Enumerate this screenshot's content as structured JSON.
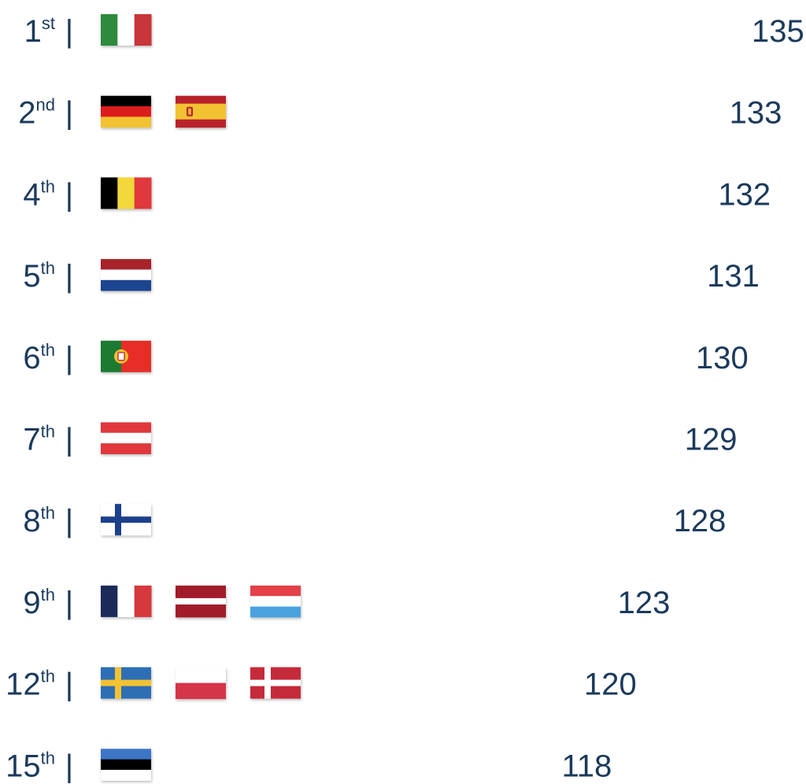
{
  "colors": {
    "text": "#1b3a5c",
    "bar_start": "#1b3a5c",
    "bar_end": "#e8394a"
  },
  "chart_data": {
    "type": "bar",
    "orientation": "horizontal",
    "rows": [
      {
        "rank": "1",
        "suffix": "st",
        "flags": [
          "italy-flag"
        ],
        "value": 135
      },
      {
        "rank": "2",
        "suffix": "nd",
        "flags": [
          "germany-flag",
          "spain-flag"
        ],
        "value": 133
      },
      {
        "rank": "4",
        "suffix": "th",
        "flags": [
          "belgium-flag"
        ],
        "value": 132
      },
      {
        "rank": "5",
        "suffix": "th",
        "flags": [
          "netherlands-flag"
        ],
        "value": 131
      },
      {
        "rank": "6",
        "suffix": "th",
        "flags": [
          "portugal-flag"
        ],
        "value": 130
      },
      {
        "rank": "7",
        "suffix": "th",
        "flags": [
          "austria-flag"
        ],
        "value": 129
      },
      {
        "rank": "8",
        "suffix": "th",
        "flags": [
          "finland-flag"
        ],
        "value": 128
      },
      {
        "rank": "9",
        "suffix": "th",
        "flags": [
          "france-flag",
          "latvia-flag",
          "luxembourg-flag"
        ],
        "value": 123
      },
      {
        "rank": "12",
        "suffix": "th",
        "flags": [
          "sweden-flag",
          "poland-flag",
          "denmark-flag"
        ],
        "value": 120
      },
      {
        "rank": "15",
        "suffix": "th",
        "flags": [
          "estonia-flag"
        ],
        "value": 118
      }
    ],
    "separator": "|"
  }
}
